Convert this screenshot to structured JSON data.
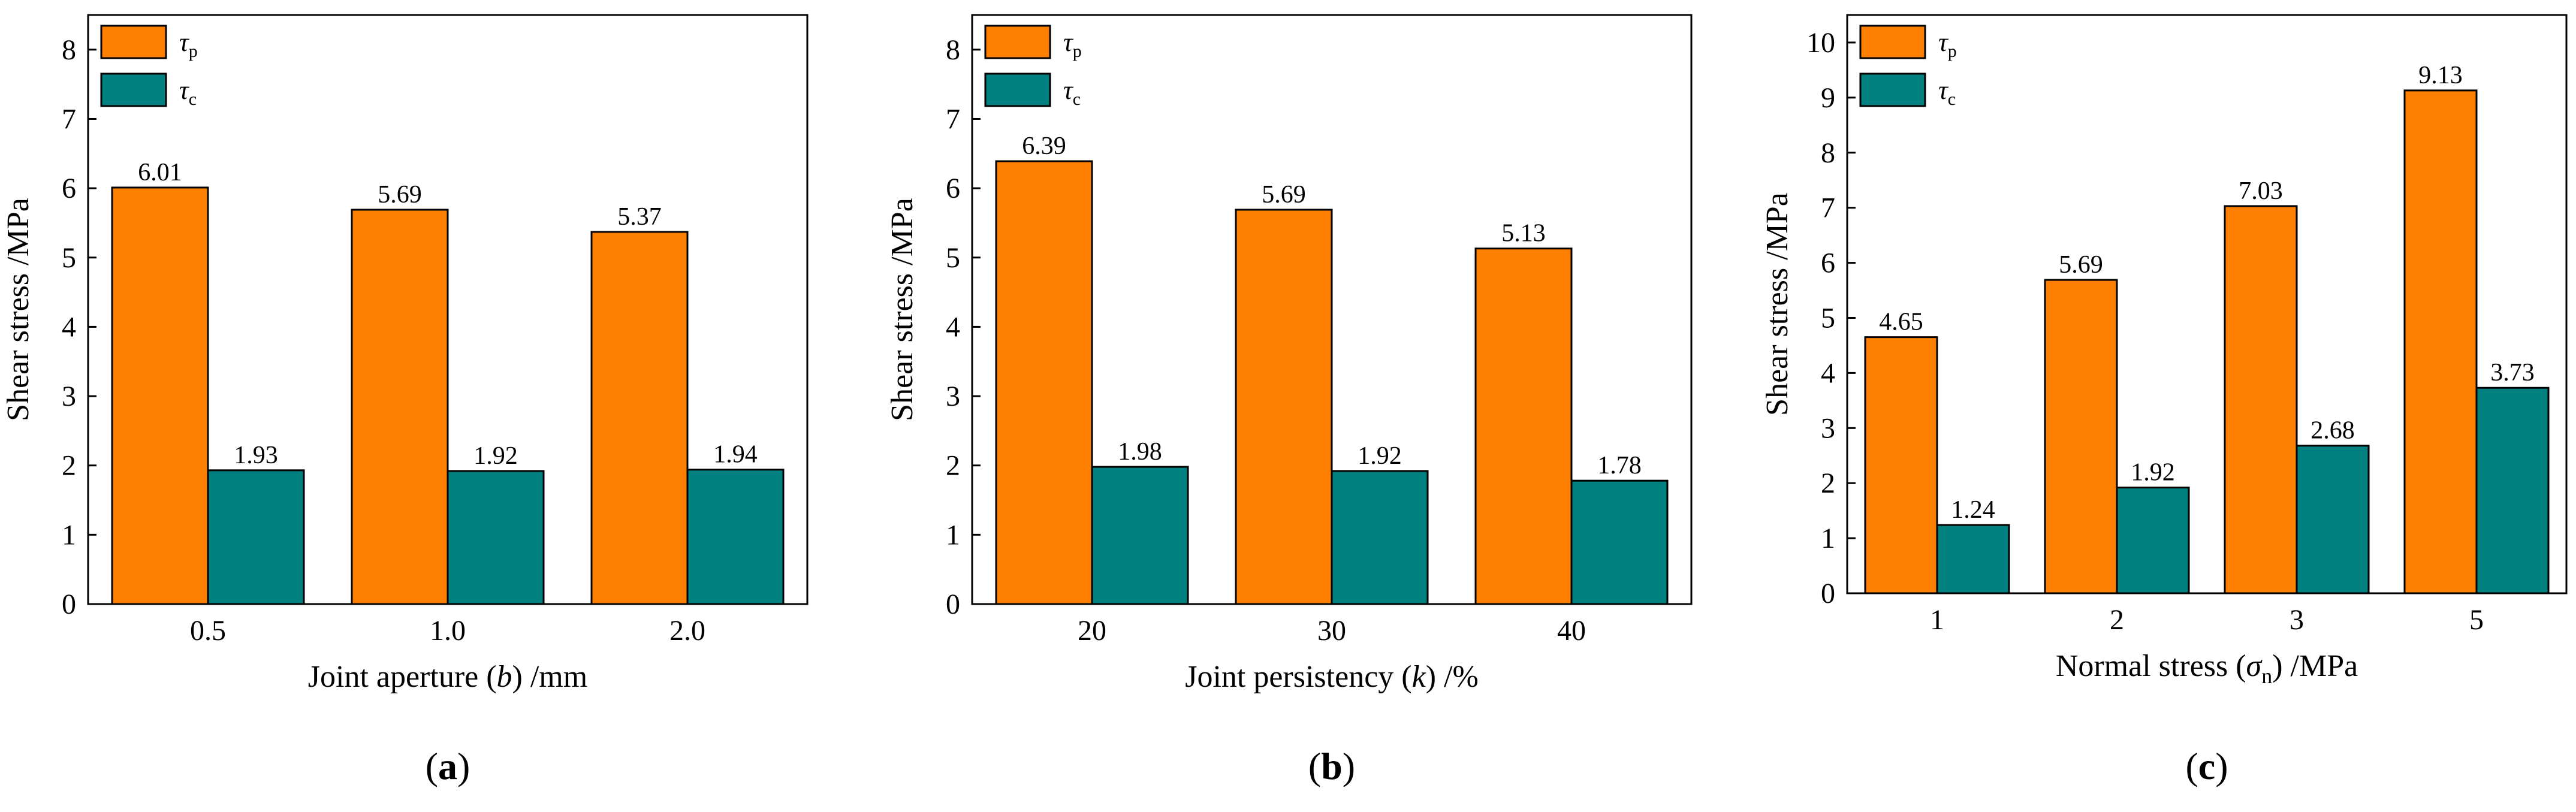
{
  "colors": {
    "tau_p": "#FF7F00",
    "tau_c": "#00807F",
    "axis": "#000000"
  },
  "legend": {
    "tau_p": {
      "symbol": "τ",
      "sub": "p"
    },
    "tau_c": {
      "symbol": "τ",
      "sub": "c"
    },
    "placement": "top-left"
  },
  "chart_data": [
    {
      "type": "bar",
      "panel_label": "a",
      "title": "",
      "ylabel": "Shear stress /MPa",
      "xlabel": {
        "pre": "Joint aperture (",
        "var": "b",
        "post": ") /mm"
      },
      "categories": [
        "0.5",
        "1.0",
        "2.0"
      ],
      "series": [
        {
          "name": "τp",
          "key": "tau_p",
          "values": [
            6.01,
            5.69,
            5.37
          ],
          "labels": [
            "6.01",
            "5.69",
            "5.37"
          ]
        },
        {
          "name": "τc",
          "key": "tau_c",
          "values": [
            1.93,
            1.92,
            1.94
          ],
          "labels": [
            "1.93",
            "1.92",
            "1.94"
          ]
        }
      ],
      "ylim": [
        0,
        8.5
      ],
      "yticks": [
        "0",
        "1",
        "2",
        "3",
        "4",
        "5",
        "6",
        "7",
        "8"
      ],
      "grid": false
    },
    {
      "type": "bar",
      "panel_label": "b",
      "title": "",
      "ylabel": "Shear stress /MPa",
      "xlabel": {
        "pre": "Joint persistency (",
        "var": "k",
        "post": ") /%"
      },
      "categories": [
        "20",
        "30",
        "40"
      ],
      "series": [
        {
          "name": "τp",
          "key": "tau_p",
          "values": [
            6.39,
            5.69,
            5.13
          ],
          "labels": [
            "6.39",
            "5.69",
            "5.13"
          ]
        },
        {
          "name": "τc",
          "key": "tau_c",
          "values": [
            1.98,
            1.92,
            1.78
          ],
          "labels": [
            "1.98",
            "1.92",
            "1.78"
          ]
        }
      ],
      "ylim": [
        0,
        8.5
      ],
      "yticks": [
        "0",
        "1",
        "2",
        "3",
        "4",
        "5",
        "6",
        "7",
        "8"
      ],
      "grid": false
    },
    {
      "type": "bar",
      "panel_label": "c",
      "title": "",
      "ylabel": "Shear stress /MPa",
      "xlabel": {
        "pre": "Normal stress (",
        "var": "σ",
        "sub": "n",
        "post": ") /MPa"
      },
      "categories": [
        "1",
        "2",
        "3",
        "5"
      ],
      "series": [
        {
          "name": "τp",
          "key": "tau_p",
          "values": [
            4.65,
            5.69,
            7.03,
            9.13
          ],
          "labels": [
            "4.65",
            "5.69",
            "7.03",
            "9.13"
          ]
        },
        {
          "name": "τc",
          "key": "tau_c",
          "values": [
            1.24,
            1.92,
            2.68,
            3.73
          ],
          "labels": [
            "1.24",
            "1.92",
            "2.68",
            "3.73"
          ]
        }
      ],
      "ylim": [
        0,
        10.5
      ],
      "yticks": [
        "0",
        "1",
        "2",
        "3",
        "4",
        "5",
        "6",
        "7",
        "8",
        "9",
        "10"
      ],
      "grid": false
    }
  ]
}
